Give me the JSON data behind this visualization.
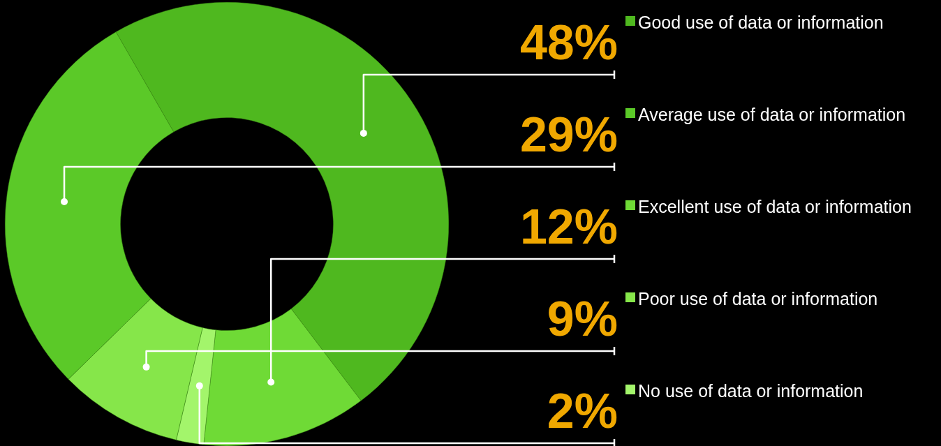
{
  "chart_data": {
    "type": "donut",
    "categories": [
      "Good use of data or information",
      "Excellent use of data or information",
      "No use of data or information",
      "Poor use of data or information",
      "Average use of data or information"
    ],
    "values": [
      48,
      12,
      2,
      9,
      29
    ],
    "colors": [
      "#4fb81f",
      "#6fda36",
      "#a3f56b",
      "#86e64a",
      "#5bc928"
    ],
    "value_labels": [
      "48%",
      "12%",
      "2%",
      "9%",
      "29%"
    ],
    "legend": "right"
  }
}
